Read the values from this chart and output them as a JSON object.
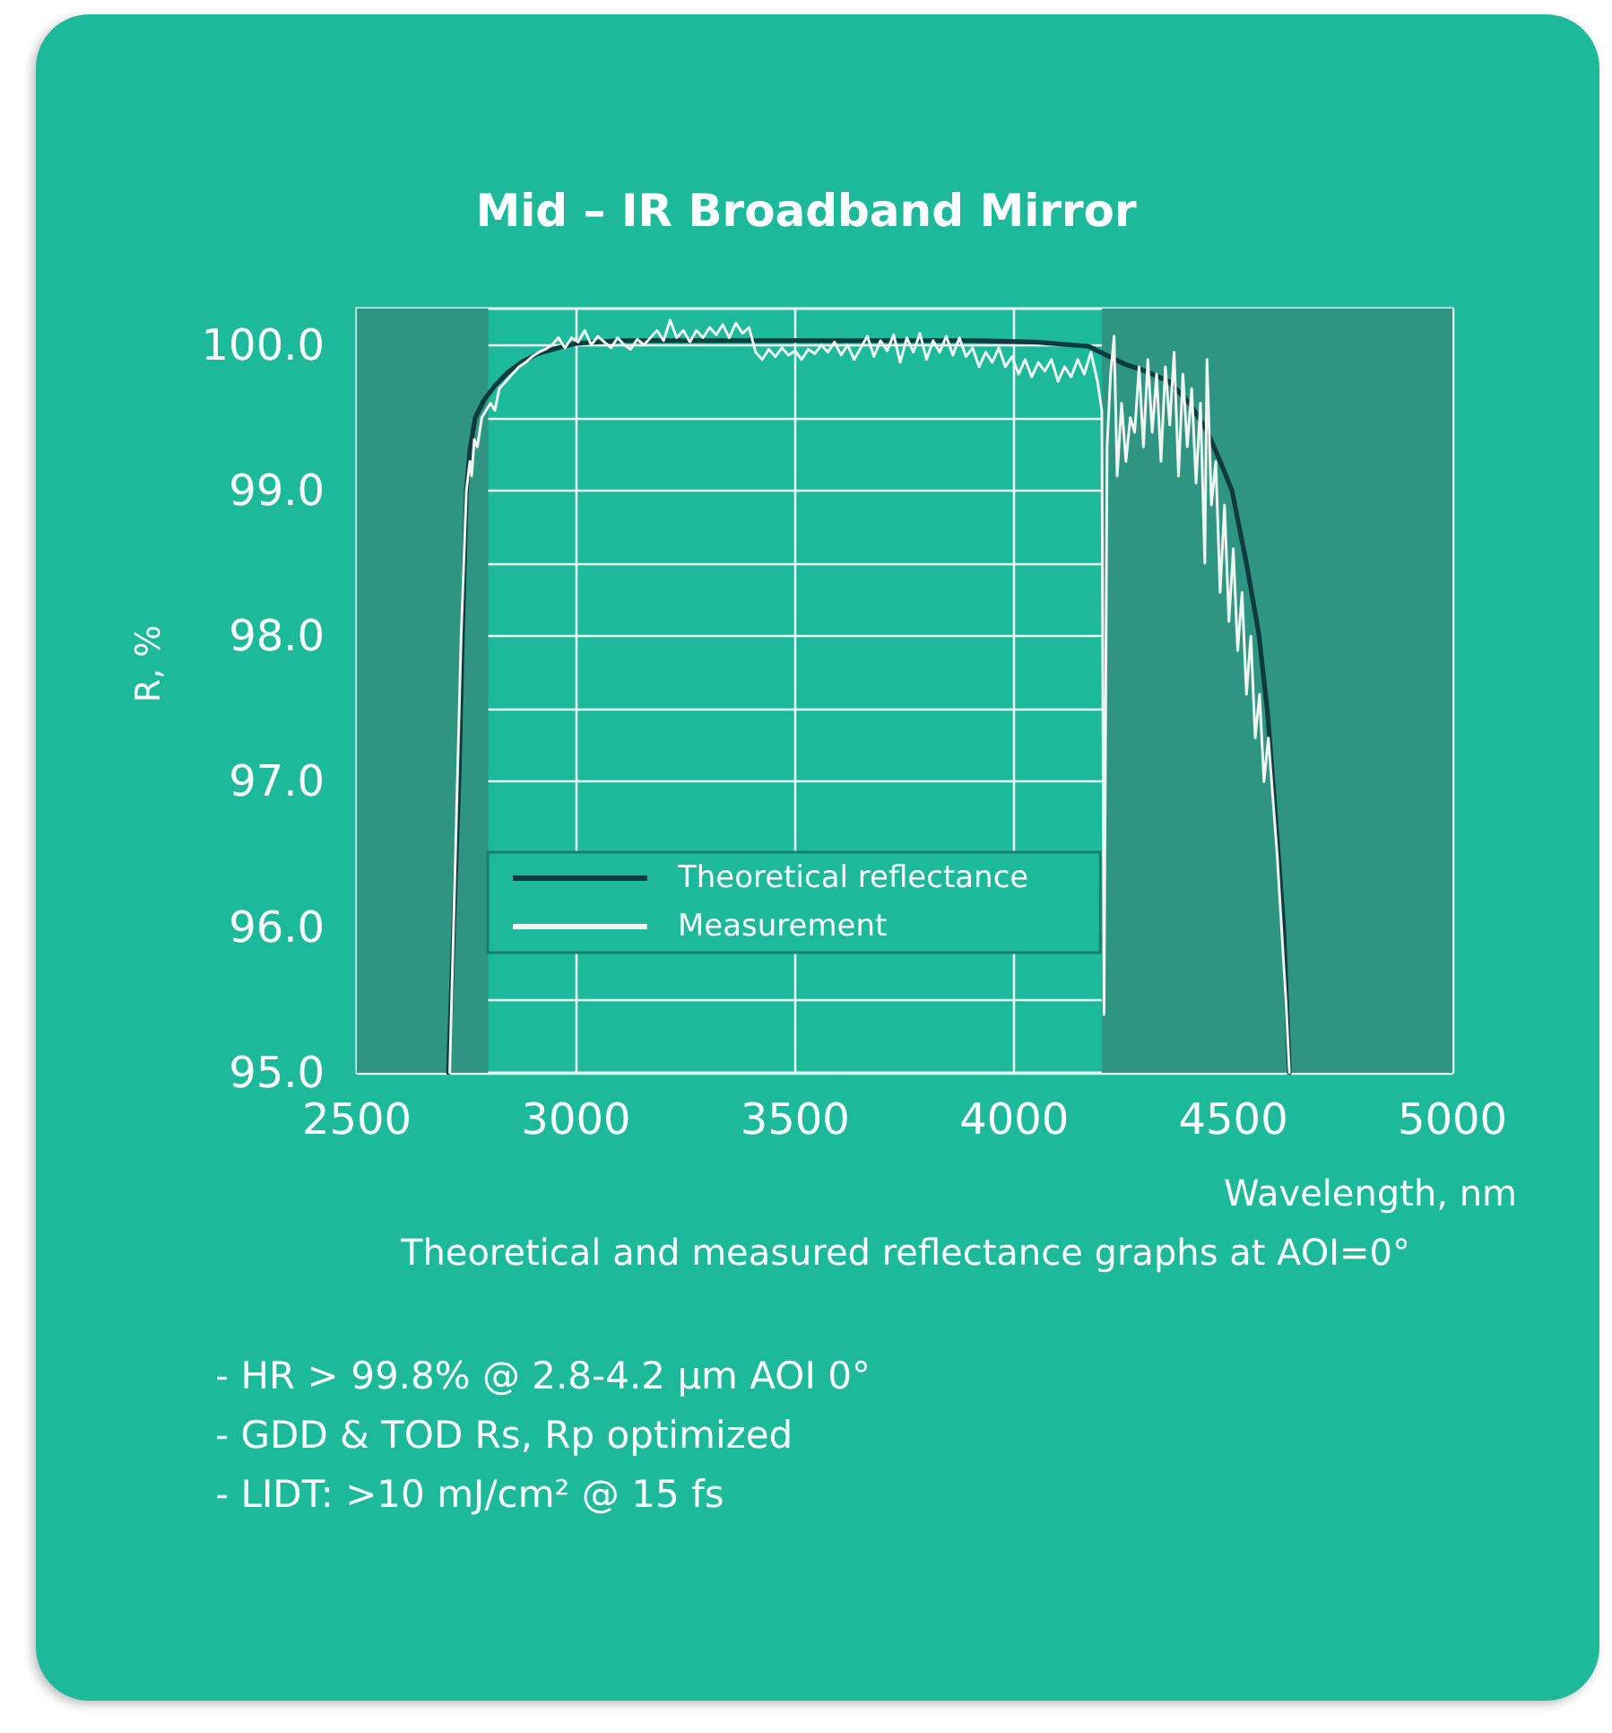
{
  "chart_data": {
    "type": "line",
    "title": "Mid – IR Broadband Mirror",
    "xlabel": "Wavelength, nm",
    "ylabel": "R, %",
    "xlim": [
      2500,
      5000
    ],
    "xticks": [
      2500,
      3000,
      3500,
      4000,
      4500,
      5000
    ],
    "ylim": [
      95,
      100.25
    ],
    "yticks": [
      {
        "value": 95,
        "label": "95.0"
      },
      {
        "value": 95.5,
        "label": null
      },
      {
        "value": 96,
        "label": "96.0"
      },
      {
        "value": 96.5,
        "label": null
      },
      {
        "value": 97,
        "label": "97.0"
      },
      {
        "value": 97.5,
        "label": null
      },
      {
        "value": 98,
        "label": "98.0"
      },
      {
        "value": 98.5,
        "label": null
      },
      {
        "value": 99,
        "label": "99.0"
      },
      {
        "value": 99.5,
        "label": null
      },
      {
        "value": 100,
        "label": "100.0"
      }
    ],
    "grid": true,
    "legend": "bottom left",
    "marker": "none",
    "line_style": "solid",
    "bands": [
      {
        "axis": "x",
        "from": 2500,
        "to": 2800,
        "color": "#2e9582"
      },
      {
        "axis": "x",
        "from": 4200,
        "to": 5000,
        "color": "#2e9582"
      }
    ],
    "series": [
      {
        "name": "Theoretical reflectance",
        "color": "#0f3a3f",
        "x": [
          2709,
          2721,
          2733,
          2741,
          2750,
          2758,
          2770,
          2790,
          2815,
          2844,
          2875,
          2913,
          2960,
          3000,
          3100,
          3500,
          3900,
          4050,
          4170,
          4251,
          4300,
          4353,
          4400,
          4440,
          4470,
          4497,
          4530,
          4558,
          4578,
          4591,
          4603,
          4615,
          4628
        ],
        "values": [
          95,
          96,
          97,
          98,
          99,
          99.28,
          99.5,
          99.62,
          99.72,
          99.81,
          99.88,
          99.94,
          99.98,
          100.01,
          100.03,
          100.03,
          100.03,
          100.02,
          99.99,
          99.87,
          99.82,
          99.75,
          99.6,
          99.41,
          99.2,
          99,
          98.5,
          98.02,
          97.48,
          96.98,
          96.49,
          96,
          95
        ]
      },
      {
        "name": "Measurement",
        "color": "#f0f5f0",
        "x": [
          2712,
          2725,
          2738,
          2750,
          2758,
          2762,
          2768,
          2775,
          2785,
          2795,
          2805,
          2815,
          2825,
          2840,
          2855,
          2870,
          2885,
          2900,
          2915,
          2930,
          2945,
          2960,
          2975,
          2990,
          3005,
          3020,
          3035,
          3050,
          3065,
          3080,
          3095,
          3110,
          3125,
          3140,
          3155,
          3170,
          3185,
          3200,
          3215,
          3230,
          3245,
          3260,
          3275,
          3290,
          3305,
          3320,
          3335,
          3350,
          3365,
          3380,
          3395,
          3410,
          3425,
          3440,
          3455,
          3470,
          3485,
          3500,
          3515,
          3530,
          3545,
          3560,
          3575,
          3590,
          3605,
          3620,
          3635,
          3650,
          3665,
          3680,
          3695,
          3710,
          3725,
          3740,
          3755,
          3770,
          3785,
          3800,
          3815,
          3830,
          3845,
          3860,
          3875,
          3890,
          3905,
          3920,
          3935,
          3950,
          3965,
          3980,
          3995,
          4010,
          4025,
          4040,
          4055,
          4070,
          4085,
          4100,
          4115,
          4130,
          4145,
          4160,
          4175,
          4190,
          4200,
          4205,
          4212,
          4220,
          4228,
          4235,
          4245,
          4255,
          4265,
          4275,
          4285,
          4295,
          4305,
          4315,
          4325,
          4335,
          4345,
          4355,
          4365,
          4375,
          4385,
          4395,
          4405,
          4415,
          4425,
          4435,
          4440,
          4450,
          4460,
          4470,
          4480,
          4490,
          4500,
          4510,
          4520,
          4530,
          4540,
          4550,
          4560,
          4570,
          4580,
          4590,
          4600,
          4610,
          4620,
          4628
        ],
        "values": [
          95,
          96.5,
          98,
          99,
          99.2,
          99.1,
          99.35,
          99.3,
          99.5,
          99.55,
          99.6,
          99.55,
          99.7,
          99.75,
          99.8,
          99.85,
          99.88,
          99.92,
          99.95,
          99.97,
          100,
          100.05,
          99.98,
          100.05,
          100.02,
          100.1,
          100,
          100.06,
          100.02,
          99.98,
          100.05,
          100,
          99.97,
          100.04,
          100,
          100.05,
          100.1,
          100.03,
          100.17,
          100.05,
          100.1,
          100.02,
          100.1,
          100.05,
          100.12,
          100.07,
          100.14,
          100.05,
          100.15,
          100.08,
          100.12,
          99.95,
          99.9,
          99.97,
          99.92,
          99.98,
          99.93,
          99.96,
          99.9,
          99.97,
          99.94,
          100,
          99.95,
          100.02,
          99.93,
          100,
          99.9,
          99.98,
          100.06,
          99.92,
          100.03,
          99.96,
          100.07,
          99.88,
          100.05,
          99.95,
          100.08,
          99.9,
          100.03,
          99.95,
          100.06,
          99.93,
          100.05,
          99.92,
          99.98,
          99.85,
          99.95,
          99.88,
          99.98,
          99.85,
          99.92,
          99.8,
          99.9,
          99.78,
          99.88,
          99.82,
          99.9,
          99.75,
          99.85,
          99.78,
          99.9,
          99.8,
          99.95,
          99.75,
          99.55,
          95.4,
          99.3,
          99.8,
          100.06,
          99.1,
          99.6,
          99.2,
          99.5,
          99.4,
          99.85,
          99.3,
          99.9,
          99.4,
          99.8,
          99.2,
          99.85,
          99.45,
          99.95,
          99.1,
          99.8,
          99.3,
          99.7,
          99.05,
          99.6,
          98.5,
          99.9,
          98.9,
          99.2,
          98.3,
          98.9,
          98.1,
          98.6,
          97.9,
          98.3,
          97.6,
          98,
          97.3,
          97.6,
          97,
          97.3,
          96.9,
          96.5,
          96,
          95.5,
          95
        ]
      }
    ],
    "annotations": [
      "Theoretical and measured reflectance graphs at AOI=0°",
      "- HR > 99.8% @ 2.8-4.2 µm AOI 0°",
      "- GDD & TOD Rs, Rp optimized",
      "- LIDT: >10 mJ/cm² @ 15 fs"
    ]
  }
}
